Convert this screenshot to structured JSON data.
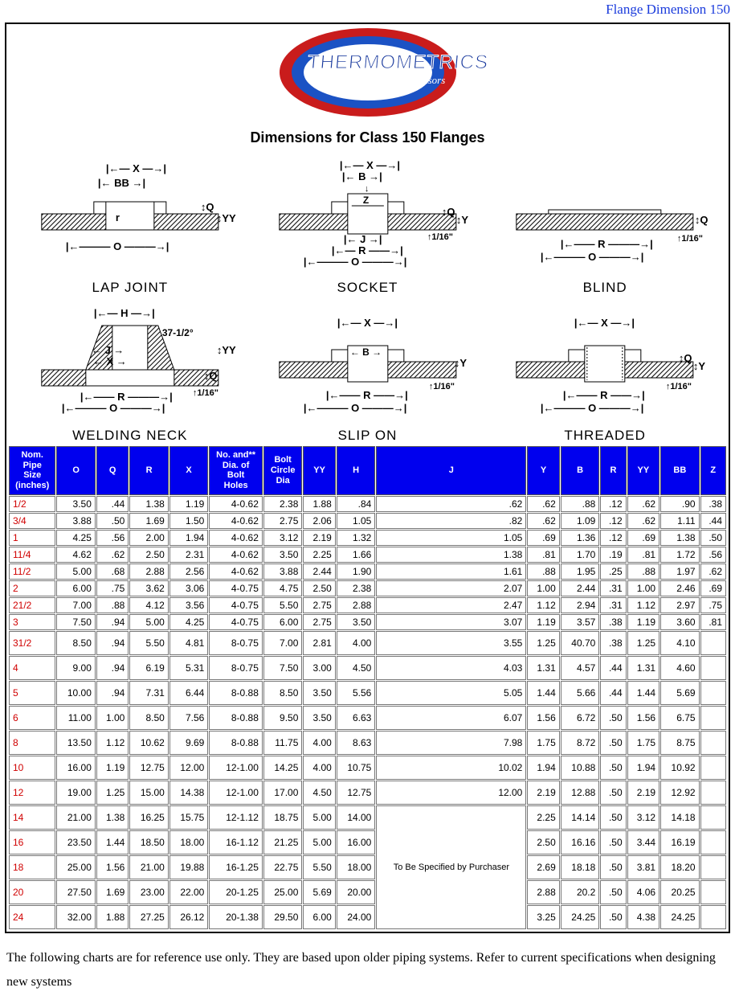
{
  "header_link": "Flange Dimension 150",
  "logo": {
    "text": "THERMOMETRICS",
    "sub": "Precision Temperature Sensors"
  },
  "page_title": "Dimensions for Class 150 Flanges",
  "diagrams": {
    "labels": [
      "LAP JOINT",
      "SOCKET",
      "BLIND",
      "WELDING NECK",
      "SLIP ON",
      "THREADED"
    ],
    "angle": "37-1/2°",
    "dim_sixteenth": "1/16\"",
    "letters": {
      "X": "X",
      "B": "B",
      "BB": "BB",
      "J": "J",
      "R": "R",
      "O": "O",
      "Z": "Z",
      "Q": "Q",
      "Y": "Y",
      "YY": "YY",
      "H": "H",
      "r": "r"
    }
  },
  "table": {
    "headers": [
      "Nom. Pipe Size (inches)",
      "O",
      "Q",
      "R",
      "X",
      "No. and** Dia. of Bolt Holes",
      "Bolt Circle Dia",
      "YY",
      "H",
      "J",
      "Y",
      "B",
      "R",
      "YY",
      "BB",
      "Z"
    ],
    "merged_j_text": "To Be Specified by Purchaser",
    "tall_from_index": 8,
    "rows": [
      {
        "size": "1/2",
        "v": [
          "3.50",
          ".44",
          "1.38",
          "1.19",
          "4-0.62",
          "2.38",
          "1.88",
          ".84",
          ".62",
          ".62",
          ".88",
          ".12",
          ".62",
          ".90",
          ".38"
        ]
      },
      {
        "size": "3/4",
        "v": [
          "3.88",
          ".50",
          "1.69",
          "1.50",
          "4-0.62",
          "2.75",
          "2.06",
          "1.05",
          ".82",
          ".62",
          "1.09",
          ".12",
          ".62",
          "1.11",
          ".44"
        ]
      },
      {
        "size": "1",
        "v": [
          "4.25",
          ".56",
          "2.00",
          "1.94",
          "4-0.62",
          "3.12",
          "2.19",
          "1.32",
          "1.05",
          ".69",
          "1.36",
          ".12",
          ".69",
          "1.38",
          ".50"
        ]
      },
      {
        "size": "11/4",
        "v": [
          "4.62",
          ".62",
          "2.50",
          "2.31",
          "4-0.62",
          "3.50",
          "2.25",
          "1.66",
          "1.38",
          ".81",
          "1.70",
          ".19",
          ".81",
          "1.72",
          ".56"
        ]
      },
      {
        "size": "11/2",
        "v": [
          "5.00",
          ".68",
          "2.88",
          "2.56",
          "4-0.62",
          "3.88",
          "2.44",
          "1.90",
          "1.61",
          ".88",
          "1.95",
          ".25",
          ".88",
          "1.97",
          ".62"
        ]
      },
      {
        "size": "2",
        "v": [
          "6.00",
          ".75",
          "3.62",
          "3.06",
          "4-0.75",
          "4.75",
          "2.50",
          "2.38",
          "2.07",
          "1.00",
          "2.44",
          ".31",
          "1.00",
          "2.46",
          ".69"
        ]
      },
      {
        "size": "21/2",
        "v": [
          "7.00",
          ".88",
          "4.12",
          "3.56",
          "4-0.75",
          "5.50",
          "2.75",
          "2.88",
          "2.47",
          "1.12",
          "2.94",
          ".31",
          "1.12",
          "2.97",
          ".75"
        ]
      },
      {
        "size": "3",
        "v": [
          "7.50",
          ".94",
          "5.00",
          "4.25",
          "4-0.75",
          "6.00",
          "2.75",
          "3.50",
          "3.07",
          "1.19",
          "3.57",
          ".38",
          "1.19",
          "3.60",
          ".81"
        ]
      },
      {
        "size": "31/2",
        "v": [
          "8.50",
          ".94",
          "5.50",
          "4.81",
          "8-0.75",
          "7.00",
          "2.81",
          "4.00",
          "3.55",
          "1.25",
          "40.70",
          ".38",
          "1.25",
          "4.10",
          ""
        ]
      },
      {
        "size": "4",
        "v": [
          "9.00",
          ".94",
          "6.19",
          "5.31",
          "8-0.75",
          "7.50",
          "3.00",
          "4.50",
          "4.03",
          "1.31",
          "4.57",
          ".44",
          "1.31",
          "4.60",
          ""
        ]
      },
      {
        "size": "5",
        "v": [
          "10.00",
          ".94",
          "7.31",
          "6.44",
          "8-0.88",
          "8.50",
          "3.50",
          "5.56",
          "5.05",
          "1.44",
          "5.66",
          ".44",
          "1.44",
          "5.69",
          ""
        ]
      },
      {
        "size": "6",
        "v": [
          "11.00",
          "1.00",
          "8.50",
          "7.56",
          "8-0.88",
          "9.50",
          "3.50",
          "6.63",
          "6.07",
          "1.56",
          "6.72",
          ".50",
          "1.56",
          "6.75",
          ""
        ]
      },
      {
        "size": "8",
        "v": [
          "13.50",
          "1.12",
          "10.62",
          "9.69",
          "8-0.88",
          "11.75",
          "4.00",
          "8.63",
          "7.98",
          "1.75",
          "8.72",
          ".50",
          "1.75",
          "8.75",
          ""
        ]
      },
      {
        "size": "10",
        "v": [
          "16.00",
          "1.19",
          "12.75",
          "12.00",
          "12-1.00",
          "14.25",
          "4.00",
          "10.75",
          "10.02",
          "1.94",
          "10.88",
          ".50",
          "1.94",
          "10.92",
          ""
        ]
      },
      {
        "size": "12",
        "v": [
          "19.00",
          "1.25",
          "15.00",
          "14.38",
          "12-1.00",
          "17.00",
          "4.50",
          "12.75",
          "12.00",
          "2.19",
          "12.88",
          ".50",
          "2.19",
          "12.92",
          ""
        ]
      },
      {
        "size": "14",
        "v": [
          "21.00",
          "1.38",
          "16.25",
          "15.75",
          "12-1.12",
          "18.75",
          "5.00",
          "14.00",
          null,
          "2.25",
          "14.14",
          ".50",
          "3.12",
          "14.18",
          ""
        ]
      },
      {
        "size": "16",
        "v": [
          "23.50",
          "1.44",
          "18.50",
          "18.00",
          "16-1.12",
          "21.25",
          "5.00",
          "16.00",
          null,
          "2.50",
          "16.16",
          ".50",
          "3.44",
          "16.19",
          ""
        ]
      },
      {
        "size": "18",
        "v": [
          "25.00",
          "1.56",
          "21.00",
          "19.88",
          "16-1.25",
          "22.75",
          "5.50",
          "18.00",
          null,
          "2.69",
          "18.18",
          ".50",
          "3.81",
          "18.20",
          ""
        ]
      },
      {
        "size": "20",
        "v": [
          "27.50",
          "1.69",
          "23.00",
          "22.00",
          "20-1.25",
          "25.00",
          "5.69",
          "20.00",
          null,
          "2.88",
          "20.2",
          ".50",
          "4.06",
          "20.25",
          ""
        ]
      },
      {
        "size": "24",
        "v": [
          "32.00",
          "1.88",
          "27.25",
          "26.12",
          "20-1.38",
          "29.50",
          "6.00",
          "24.00",
          null,
          "3.25",
          "24.25",
          ".50",
          "4.38",
          "24.25",
          ""
        ]
      }
    ]
  },
  "footnote": "The following charts are for reference use only. They are based upon older piping systems.  Refer to current specifications when designing new systems"
}
